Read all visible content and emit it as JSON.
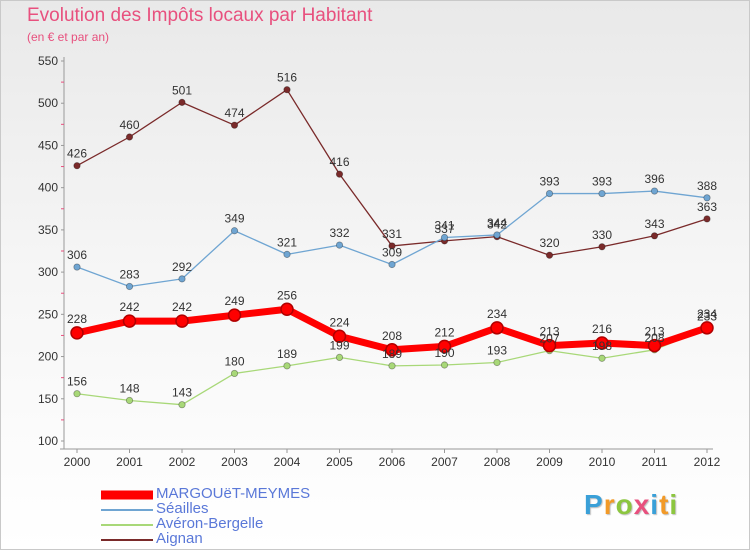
{
  "title": "Evolution des Impôts locaux par Habitant",
  "subtitle": "(en € et par an)",
  "colors": {
    "title": "#e8507e",
    "legend_text": "#5a78d8",
    "axis": "#999999",
    "axis_tick": "#e8507e"
  },
  "logo": {
    "text": "Proxiti",
    "letters": [
      "P",
      "r",
      "o",
      "x",
      "i",
      "t",
      "i"
    ],
    "colors": [
      "#3aa0d8",
      "#f29a28",
      "#8cc63f",
      "#e8507e",
      "#3aa0d8",
      "#f29a28",
      "#8cc63f"
    ]
  },
  "chart_data": {
    "type": "line",
    "title": "Evolution des Impôts locaux par Habitant",
    "subtitle": "(en € et par an)",
    "xlabel": "",
    "ylabel": "",
    "x": [
      "2000",
      "2001",
      "2002",
      "2003",
      "2004",
      "2005",
      "2006",
      "2007",
      "2008",
      "2009",
      "2010",
      "2011",
      "2012"
    ],
    "yticks": [
      100,
      150,
      200,
      250,
      300,
      350,
      400,
      450,
      500,
      550
    ],
    "ylim": [
      100,
      550
    ],
    "grid": false,
    "legend_position": "bottom-left",
    "series": [
      {
        "name": "MARGOUëT-MEYMES",
        "color": "#ff0000",
        "line_width": 7,
        "marker_radius": 6,
        "values": [
          228,
          242,
          242,
          249,
          256,
          224,
          208,
          212,
          234,
          213,
          216,
          213,
          234
        ],
        "labels": [
          "228",
          "242",
          "242",
          "249",
          "256",
          "224",
          "208",
          "212",
          "234",
          "213",
          "216",
          "213",
          "234"
        ]
      },
      {
        "name": "Séailles",
        "color": "#6fa5d2",
        "line_width": 1.3,
        "marker_radius": 3.2,
        "values": [
          306,
          283,
          292,
          349,
          321,
          332,
          309,
          341,
          344,
          393,
          393,
          396,
          388
        ],
        "labels": [
          "306",
          "283",
          "292",
          "349",
          "321",
          "332",
          "309",
          "341",
          "344",
          "393",
          "393",
          "396",
          "388"
        ]
      },
      {
        "name": "Avéron-Bergelle",
        "color": "#a8d878",
        "line_width": 1.3,
        "marker_radius": 3.2,
        "values": [
          156,
          148,
          143,
          180,
          189,
          199,
          189,
          190,
          193,
          207,
          198,
          208,
          233
        ],
        "labels": [
          "156",
          "148",
          "143",
          "180",
          "189",
          "199",
          "189",
          "190",
          "193",
          "207",
          "198",
          "208",
          "233"
        ]
      },
      {
        "name": "Aignan",
        "color": "#7a2a2a",
        "line_width": 1.3,
        "marker_radius": 3.2,
        "values": [
          426,
          460,
          501,
          474,
          516,
          416,
          331,
          337,
          342,
          320,
          330,
          343,
          363
        ],
        "labels": [
          "426",
          "460",
          "501",
          "474",
          "516",
          "416",
          "331",
          "337",
          "342",
          "320",
          "330",
          "343",
          "363"
        ]
      }
    ]
  }
}
